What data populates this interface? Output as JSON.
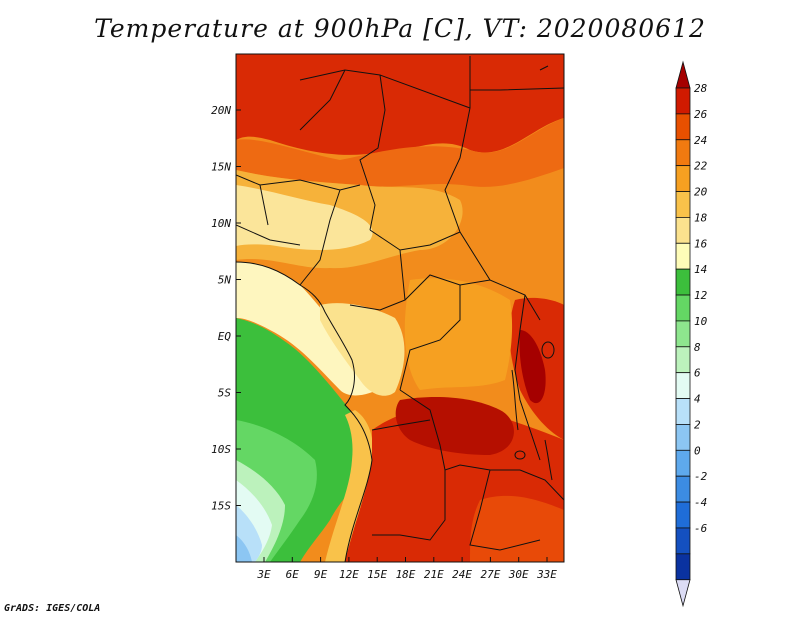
{
  "title": "Temperature at 900hPa [C], VT: 2020080612",
  "credit": "GrADS: IGES/COLA",
  "map": {
    "lat_labels": [
      "20N",
      "15N",
      "10N",
      "5N",
      "EQ",
      "5S",
      "10S",
      "15S"
    ],
    "lon_labels": [
      "3E",
      "6E",
      "9E",
      "12E",
      "15E",
      "18E",
      "21E",
      "24E",
      "27E",
      "30E",
      "33E"
    ]
  },
  "colorbar": {
    "labels": [
      "28",
      "26",
      "24",
      "22",
      "20",
      "18",
      "16",
      "14",
      "12",
      "10",
      "8",
      "6",
      "4",
      "2",
      "0",
      "-2",
      "-4",
      "-6"
    ],
    "colors": [
      "#a50000",
      "#d01a00",
      "#e85000",
      "#f17a10",
      "#f6a021",
      "#f9c24a",
      "#fbe28e",
      "#fefcb8",
      "#3cbf3c",
      "#64d764",
      "#8ee68e",
      "#bcf2bc",
      "#e3fbf3",
      "#b8e0f9",
      "#8cc6f3",
      "#5ea9ed",
      "#3c8ce3",
      "#1f6dd8",
      "#1450c0",
      "#0a32a0",
      "#050a6e"
    ]
  }
}
